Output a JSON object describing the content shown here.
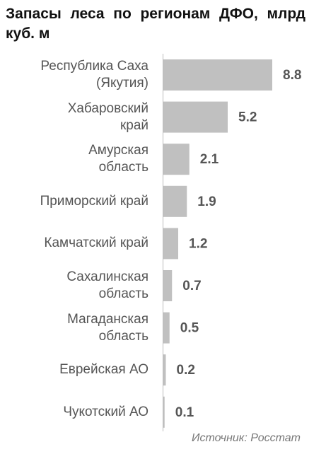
{
  "chart_data": {
    "type": "bar",
    "orientation": "horizontal",
    "title": "Запасы леса по регионам ДФО, млрд куб. м",
    "categories": [
      "Республика Саха\n(Якутия)",
      "Хабаровский\nкрай",
      "Амурская\nобласть",
      "Приморский край",
      "Камчатский край",
      "Сахалинская\nобласть",
      "Магаданская\nобласть",
      "Еврейская АО",
      "Чукотский АО"
    ],
    "values": [
      8.8,
      5.2,
      2.1,
      1.9,
      1.2,
      0.7,
      0.5,
      0.2,
      0.1
    ],
    "color": "#c0c0c0",
    "source": "Источник: Росстат"
  }
}
